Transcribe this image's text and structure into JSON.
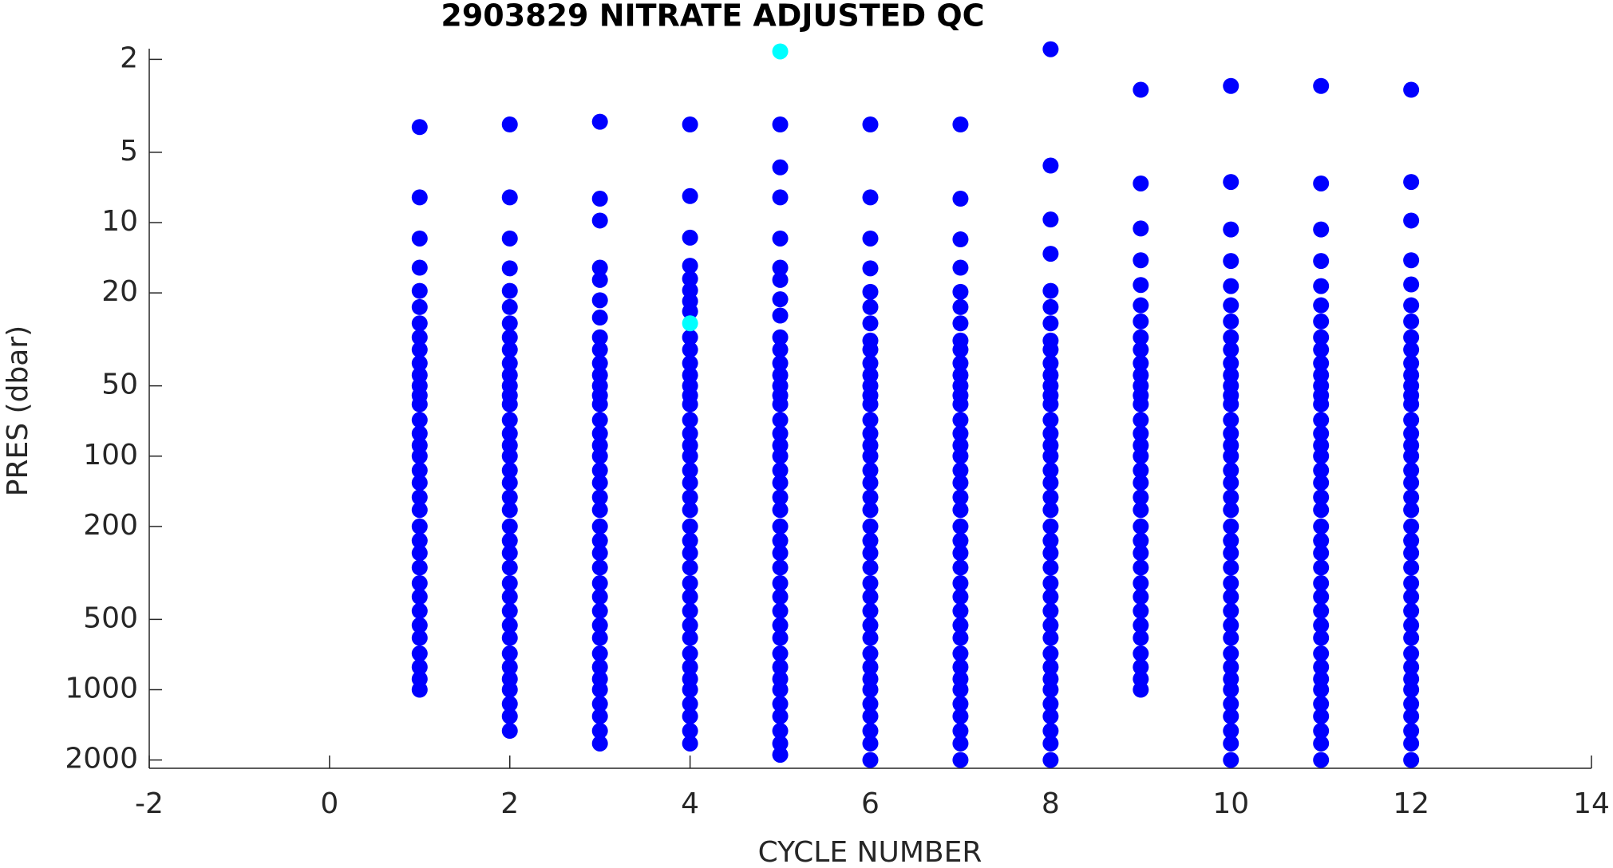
{
  "chart_data": {
    "type": "scatter",
    "title": "2903829  NITRATE ADJUSTED QC",
    "xlabel": "CYCLE NUMBER",
    "ylabel": "PRES (dbar)",
    "xlim": [
      -2,
      14
    ],
    "xticks": [
      -2,
      0,
      2,
      4,
      6,
      8,
      10,
      12,
      14
    ],
    "ylim": [
      1.8,
      2170
    ],
    "yticks": [
      2,
      5,
      10,
      20,
      50,
      100,
      200,
      500,
      1000,
      2000
    ],
    "ylog": true,
    "yreverse": true,
    "grid": false,
    "series": [
      {
        "color": "#0000ff",
        "x": [
          1,
          1,
          1,
          1,
          1,
          1,
          1,
          1,
          1,
          1,
          1,
          1,
          1,
          1,
          1,
          1,
          1,
          1,
          1,
          1,
          1,
          1,
          1,
          1,
          1,
          1,
          1,
          1,
          1,
          1,
          1,
          1,
          1,
          1,
          1
        ],
        "y": [
          3.9,
          7.8,
          11.7,
          15.6,
          19.6,
          23,
          27,
          31,
          35,
          40,
          45,
          50,
          55,
          60,
          70,
          80,
          90,
          100,
          115,
          130,
          150,
          170,
          200,
          230,
          260,
          300,
          350,
          400,
          460,
          530,
          600,
          700,
          800,
          900,
          1000
        ]
      },
      {
        "color": "#0000ff",
        "x": [
          2,
          2,
          2,
          2,
          2,
          2,
          2,
          2,
          2,
          2,
          2,
          2,
          2,
          2,
          2,
          2,
          2,
          2,
          2,
          2,
          2,
          2,
          2,
          2,
          2,
          2,
          2,
          2,
          2,
          2,
          2,
          2,
          2,
          2,
          2,
          2,
          2,
          2
        ],
        "y": [
          3.8,
          7.8,
          11.7,
          15.7,
          19.6,
          23,
          27,
          31,
          35,
          40,
          45,
          50,
          55,
          60,
          70,
          80,
          90,
          100,
          115,
          130,
          150,
          170,
          200,
          230,
          260,
          300,
          350,
          400,
          460,
          530,
          600,
          700,
          800,
          900,
          1000,
          1150,
          1300,
          1500
        ]
      },
      {
        "color": "#0000ff",
        "x": [
          3,
          3,
          3,
          3,
          3,
          3,
          3,
          3,
          3,
          3,
          3,
          3,
          3,
          3,
          3,
          3,
          3,
          3,
          3,
          3,
          3,
          3,
          3,
          3,
          3,
          3,
          3,
          3,
          3,
          3,
          3,
          3,
          3,
          3,
          3,
          3,
          3,
          3,
          3
        ],
        "y": [
          3.7,
          7.9,
          9.8,
          15.6,
          17.6,
          21.5,
          25.5,
          31,
          35,
          40,
          45,
          50,
          55,
          60,
          70,
          80,
          90,
          100,
          115,
          130,
          150,
          170,
          200,
          230,
          260,
          300,
          350,
          400,
          460,
          530,
          600,
          700,
          800,
          900,
          1000,
          1150,
          1300,
          1500,
          1700
        ]
      },
      {
        "color": "#0000ff",
        "x": [
          4,
          4,
          4,
          4,
          4,
          4,
          4,
          4,
          4,
          4,
          4,
          4,
          4,
          4,
          4,
          4,
          4,
          4,
          4,
          4,
          4,
          4,
          4,
          4,
          4,
          4,
          4,
          4,
          4,
          4,
          4,
          4,
          4,
          4,
          4,
          4,
          4,
          4,
          4,
          4
        ],
        "y": [
          3.8,
          7.7,
          11.6,
          15.3,
          17.4,
          19.5,
          21.7,
          24,
          31,
          35,
          40,
          45,
          50,
          55,
          60,
          70,
          80,
          90,
          100,
          115,
          130,
          150,
          170,
          200,
          230,
          260,
          300,
          350,
          400,
          460,
          530,
          600,
          700,
          800,
          900,
          1000,
          1150,
          1300,
          1500,
          1700
        ]
      },
      {
        "color": "#0000ff",
        "x": [
          5,
          5,
          5,
          5,
          5,
          5,
          5,
          5,
          5,
          5,
          5,
          5,
          5,
          5,
          5,
          5,
          5,
          5,
          5,
          5,
          5,
          5,
          5,
          5,
          5,
          5,
          5,
          5,
          5,
          5,
          5,
          5,
          5,
          5,
          5,
          5,
          5,
          5,
          5,
          5,
          5
        ],
        "y": [
          3.8,
          5.8,
          7.8,
          11.7,
          15.6,
          17.6,
          21.3,
          25,
          31,
          35,
          40,
          45,
          50,
          55,
          60,
          70,
          80,
          90,
          100,
          115,
          130,
          150,
          170,
          200,
          230,
          260,
          300,
          350,
          400,
          460,
          530,
          600,
          700,
          800,
          900,
          1000,
          1150,
          1300,
          1500,
          1700,
          1900
        ]
      },
      {
        "color": "#0000ff",
        "x": [
          6,
          6,
          6,
          6,
          6,
          6,
          6,
          6,
          6,
          6,
          6,
          6,
          6,
          6,
          6,
          6,
          6,
          6,
          6,
          6,
          6,
          6,
          6,
          6,
          6,
          6,
          6,
          6,
          6,
          6,
          6,
          6,
          6,
          6,
          6,
          6,
          6,
          6,
          6,
          6
        ],
        "y": [
          3.8,
          7.8,
          11.7,
          15.7,
          19.8,
          23,
          27,
          32,
          35,
          40,
          45,
          50,
          55,
          60,
          70,
          80,
          90,
          100,
          115,
          130,
          150,
          170,
          200,
          230,
          260,
          300,
          350,
          400,
          460,
          530,
          600,
          700,
          800,
          900,
          1000,
          1150,
          1300,
          1500,
          1700,
          2000
        ]
      },
      {
        "color": "#0000ff",
        "x": [
          7,
          7,
          7,
          7,
          7,
          7,
          7,
          7,
          7,
          7,
          7,
          7,
          7,
          7,
          7,
          7,
          7,
          7,
          7,
          7,
          7,
          7,
          7,
          7,
          7,
          7,
          7,
          7,
          7,
          7,
          7,
          7,
          7,
          7,
          7,
          7,
          7,
          7,
          7,
          7
        ],
        "y": [
          3.8,
          7.9,
          11.8,
          15.6,
          19.8,
          23,
          27,
          32,
          35,
          40,
          45,
          50,
          55,
          60,
          70,
          80,
          90,
          100,
          115,
          130,
          150,
          170,
          200,
          230,
          260,
          300,
          350,
          400,
          460,
          530,
          600,
          700,
          800,
          900,
          1000,
          1150,
          1300,
          1500,
          1700,
          2000
        ]
      },
      {
        "color": "#0000ff",
        "x": [
          8,
          8,
          8,
          8,
          8,
          8,
          8,
          8,
          8,
          8,
          8,
          8,
          8,
          8,
          8,
          8,
          8,
          8,
          8,
          8,
          8,
          8,
          8,
          8,
          8,
          8,
          8,
          8,
          8,
          8,
          8,
          8,
          8,
          8,
          8,
          8,
          8,
          8,
          8,
          8
        ],
        "y": [
          1.81,
          5.7,
          9.7,
          13.6,
          19.6,
          23,
          27,
          32,
          35,
          40,
          45,
          50,
          55,
          60,
          70,
          80,
          90,
          100,
          115,
          130,
          150,
          170,
          200,
          230,
          260,
          300,
          350,
          400,
          460,
          530,
          600,
          700,
          800,
          900,
          1000,
          1150,
          1300,
          1500,
          1700,
          2000
        ]
      },
      {
        "color": "#0000ff",
        "x": [
          9,
          9,
          9,
          9,
          9,
          9,
          9,
          9,
          9,
          9,
          9,
          9,
          9,
          9,
          9,
          9,
          9,
          9,
          9,
          9,
          9,
          9,
          9,
          9,
          9,
          9,
          9,
          9,
          9,
          9,
          9,
          9,
          9,
          9,
          9
        ],
        "y": [
          2.7,
          6.8,
          10.6,
          14.5,
          18.5,
          22.6,
          26.5,
          31,
          35,
          40,
          45,
          50,
          55,
          60,
          70,
          80,
          90,
          100,
          115,
          130,
          150,
          170,
          200,
          230,
          260,
          300,
          350,
          400,
          460,
          530,
          600,
          700,
          800,
          900,
          1000
        ]
      },
      {
        "color": "#0000ff",
        "x": [
          10,
          10,
          10,
          10,
          10,
          10,
          10,
          10,
          10,
          10,
          10,
          10,
          10,
          10,
          10,
          10,
          10,
          10,
          10,
          10,
          10,
          10,
          10,
          10,
          10,
          10,
          10,
          10,
          10,
          10,
          10,
          10,
          10,
          10,
          10,
          10,
          10,
          10,
          10,
          10
        ],
        "y": [
          2.6,
          6.7,
          10.7,
          14.6,
          18.7,
          22.6,
          26.5,
          31,
          35,
          40,
          45,
          50,
          55,
          60,
          70,
          80,
          90,
          100,
          115,
          130,
          150,
          170,
          200,
          230,
          260,
          300,
          350,
          400,
          460,
          530,
          600,
          700,
          800,
          900,
          1000,
          1150,
          1300,
          1500,
          1700,
          2000
        ]
      },
      {
        "color": "#0000ff",
        "x": [
          11,
          11,
          11,
          11,
          11,
          11,
          11,
          11,
          11,
          11,
          11,
          11,
          11,
          11,
          11,
          11,
          11,
          11,
          11,
          11,
          11,
          11,
          11,
          11,
          11,
          11,
          11,
          11,
          11,
          11,
          11,
          11,
          11,
          11,
          11,
          11,
          11,
          11,
          11,
          11
        ],
        "y": [
          2.6,
          6.8,
          10.7,
          14.6,
          18.7,
          22.6,
          26.5,
          31,
          35,
          40,
          45,
          50,
          55,
          60,
          70,
          80,
          90,
          100,
          115,
          130,
          150,
          170,
          200,
          230,
          260,
          300,
          350,
          400,
          460,
          530,
          600,
          700,
          800,
          900,
          1000,
          1150,
          1300,
          1500,
          1700,
          2000
        ]
      },
      {
        "color": "#0000ff",
        "x": [
          12,
          12,
          12,
          12,
          12,
          12,
          12,
          12,
          12,
          12,
          12,
          12,
          12,
          12,
          12,
          12,
          12,
          12,
          12,
          12,
          12,
          12,
          12,
          12,
          12,
          12,
          12,
          12,
          12,
          12,
          12,
          12,
          12,
          12,
          12,
          12,
          12,
          12,
          12,
          12
        ],
        "y": [
          2.7,
          6.7,
          9.8,
          14.5,
          18.4,
          22.6,
          26.5,
          31,
          35,
          40,
          45,
          50,
          55,
          60,
          70,
          80,
          90,
          100,
          115,
          130,
          150,
          170,
          200,
          230,
          260,
          300,
          350,
          400,
          460,
          530,
          600,
          700,
          800,
          900,
          1000,
          1150,
          1300,
          1500,
          1700,
          2000
        ]
      },
      {
        "color": "#00ffff",
        "x": [
          4,
          5
        ],
        "y": [
          27,
          1.85
        ]
      }
    ]
  }
}
